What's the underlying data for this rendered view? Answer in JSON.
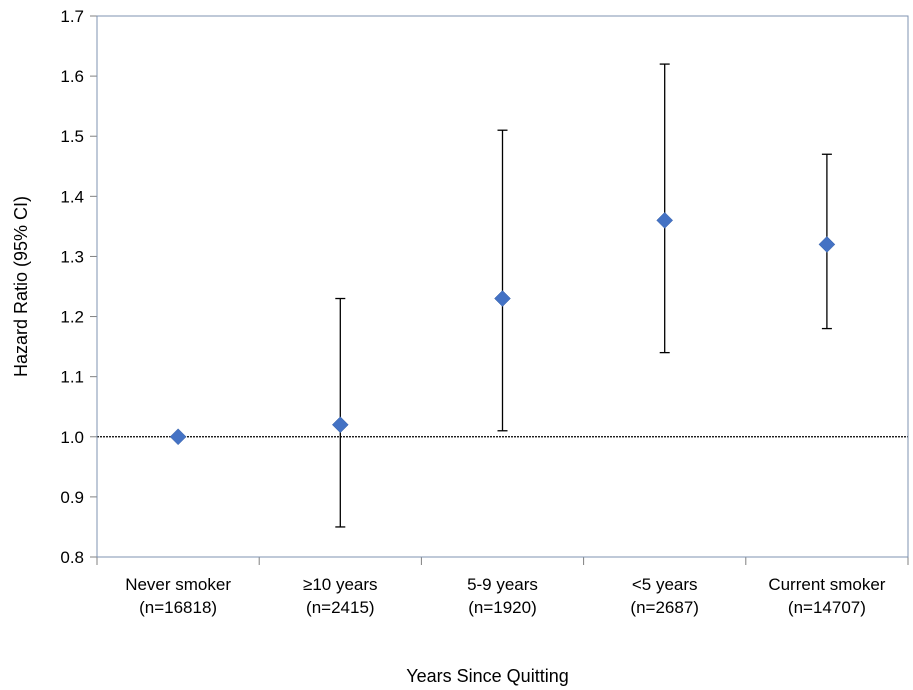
{
  "chart_data": {
    "type": "scatter",
    "title": "",
    "xlabel": "Years Since Quitting",
    "ylabel": "Hazard Ratio (95% CI)",
    "ylim": [
      0.8,
      1.7
    ],
    "yticks": [
      "0.8",
      "0.9",
      "1.0",
      "1.1",
      "1.2",
      "1.3",
      "1.4",
      "1.5",
      "1.6",
      "1.7"
    ],
    "reference_line": 1.0,
    "grid": false,
    "legend": "none",
    "marker_color": "#4472C4",
    "categories": [
      {
        "label": "Never smoker",
        "n": "(n=16818)",
        "hr": 1.0,
        "lower": 1.0,
        "upper": 1.0
      },
      {
        "label": "≥10 years",
        "n": "(n=2415)",
        "hr": 1.02,
        "lower": 0.85,
        "upper": 1.23
      },
      {
        "label": "5-9 years",
        "n": "(n=1920)",
        "hr": 1.23,
        "lower": 1.01,
        "upper": 1.51
      },
      {
        "label": "<5 years",
        "n": "(n=2687)",
        "hr": 1.36,
        "lower": 1.14,
        "upper": 1.62
      },
      {
        "label": "Current smoker",
        "n": "(n=14707)",
        "hr": 1.32,
        "lower": 1.18,
        "upper": 1.47
      }
    ]
  }
}
